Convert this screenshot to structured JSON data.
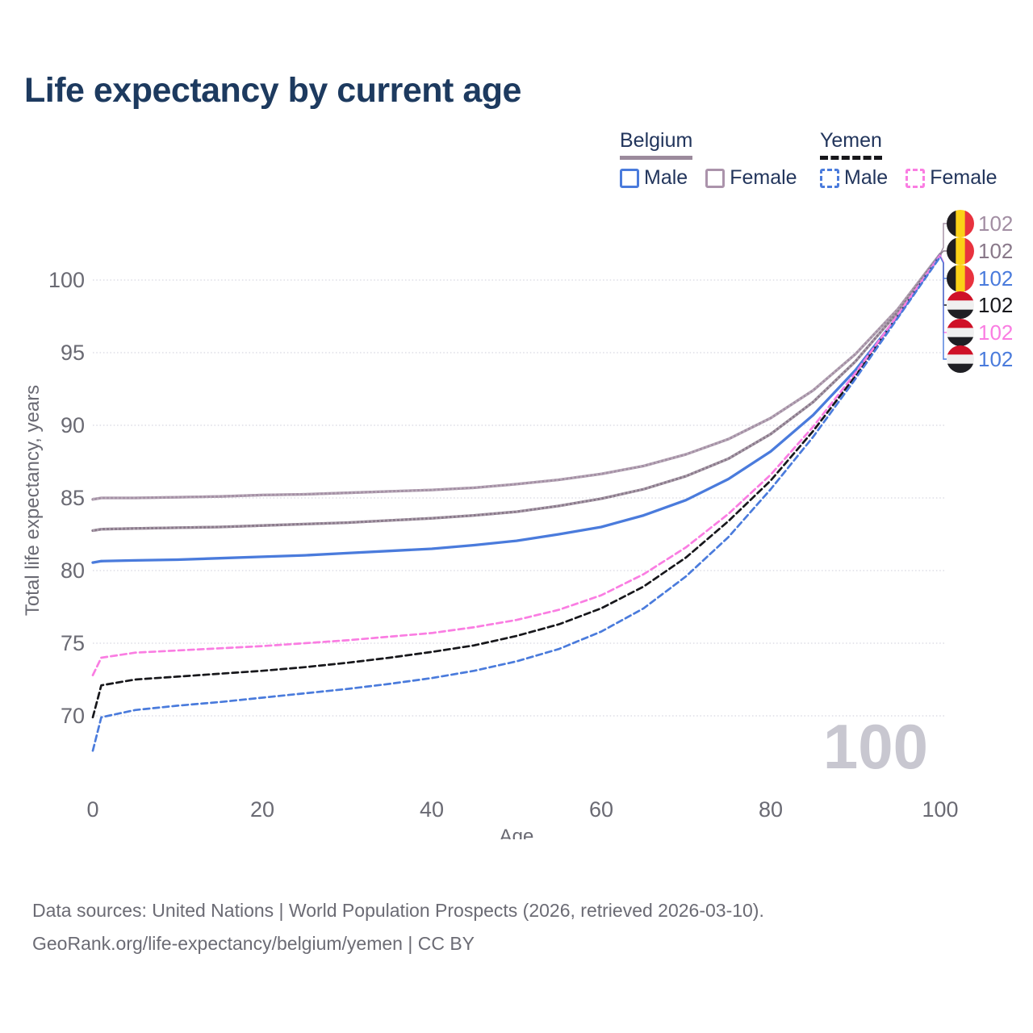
{
  "title": "Life expectancy by current age",
  "legend": {
    "groups": [
      {
        "label": "Belgium",
        "underline_style": "solid",
        "underline_color": "#9b8a9c",
        "items": [
          {
            "label": "Male",
            "color": "#4a7bdc",
            "style": "solid"
          },
          {
            "label": "Female",
            "color": "#ab93ab",
            "style": "solid"
          }
        ]
      },
      {
        "label": "Yemen",
        "underline_style": "dashed",
        "underline_color": "#17171b",
        "items": [
          {
            "label": "Male",
            "color": "#4a7bdc",
            "style": "dashed"
          },
          {
            "label": "Female",
            "color": "#fa7de2",
            "style": "dashed"
          }
        ]
      }
    ]
  },
  "chart_data": {
    "type": "line",
    "title": "Life expectancy by current age",
    "xlabel": "Age",
    "ylabel": "Total life expectancy, years",
    "xlim": [
      0,
      100
    ],
    "ylim": [
      66.5,
      103
    ],
    "xticks": [
      0,
      20,
      40,
      60,
      80,
      100
    ],
    "yticks": [
      70,
      75,
      80,
      85,
      90,
      95,
      100
    ],
    "grid": "horizontal-dotted",
    "legend_position": "top-right",
    "watermark": "100",
    "x": [
      0,
      1,
      5,
      10,
      15,
      20,
      25,
      30,
      35,
      40,
      45,
      50,
      55,
      60,
      65,
      70,
      75,
      80,
      85,
      90,
      95,
      100
    ],
    "series": [
      {
        "name": "Belgium Female",
        "country": "Belgium",
        "sex": "Female",
        "color": "#a28ea3",
        "overlay": "#b7a7b7",
        "dash": "solid",
        "flag": "belgium",
        "end_label": "102",
        "row": 0,
        "values": [
          84.9,
          85.0,
          85.0,
          85.05,
          85.1,
          85.2,
          85.25,
          85.35,
          85.45,
          85.55,
          85.7,
          85.95,
          86.25,
          86.65,
          87.2,
          88.0,
          89.05,
          90.5,
          92.4,
          94.9,
          98.0,
          101.8
        ]
      },
      {
        "name": "Belgium",
        "country": "Belgium",
        "sex": "Both",
        "color": "#887889",
        "overlay": "#aa9caa",
        "dash": "solid",
        "flag": "belgium",
        "end_label": "102",
        "row": 1,
        "values": [
          82.75,
          82.85,
          82.9,
          82.95,
          83.0,
          83.1,
          83.2,
          83.3,
          83.45,
          83.6,
          83.8,
          84.05,
          84.45,
          84.95,
          85.6,
          86.5,
          87.7,
          89.4,
          91.6,
          94.4,
          97.8,
          101.75
        ]
      },
      {
        "name": "Belgium Male",
        "country": "Belgium",
        "sex": "Male",
        "color": "#4a7bdc",
        "overlay": null,
        "dash": "solid",
        "flag": "belgium",
        "end_label": "102",
        "row": 2,
        "values": [
          80.55,
          80.65,
          80.7,
          80.75,
          80.85,
          80.95,
          81.05,
          81.2,
          81.35,
          81.5,
          81.75,
          82.05,
          82.5,
          83.0,
          83.8,
          84.85,
          86.3,
          88.2,
          90.7,
          93.8,
          97.5,
          101.7
        ]
      },
      {
        "name": "Yemen",
        "country": "Yemen",
        "sex": "Both",
        "color": "#17171b",
        "overlay": null,
        "dash": "dashed",
        "flag": "yemen",
        "end_label": "102",
        "row": 3,
        "values": [
          69.9,
          72.1,
          72.5,
          72.7,
          72.9,
          73.1,
          73.35,
          73.65,
          74.0,
          74.4,
          74.85,
          75.5,
          76.3,
          77.4,
          78.9,
          80.9,
          83.4,
          86.2,
          89.6,
          93.4,
          97.5,
          101.65
        ]
      },
      {
        "name": "Yemen Female",
        "country": "Yemen",
        "sex": "Female",
        "color": "#fa7de2",
        "overlay": null,
        "dash": "dashed",
        "flag": "yemen",
        "end_label": "102",
        "row": 4,
        "values": [
          72.8,
          74.0,
          74.35,
          74.5,
          74.65,
          74.8,
          75.0,
          75.2,
          75.45,
          75.7,
          76.1,
          76.6,
          77.3,
          78.3,
          79.75,
          81.6,
          83.9,
          86.6,
          89.9,
          93.6,
          97.6,
          101.7
        ]
      },
      {
        "name": "Yemen Male",
        "country": "Yemen",
        "sex": "Male",
        "color": "#4a7bdc",
        "overlay": null,
        "dash": "dashed",
        "flag": "yemen",
        "end_label": "102",
        "row": 5,
        "values": [
          67.6,
          69.9,
          70.4,
          70.7,
          70.95,
          71.25,
          71.55,
          71.85,
          72.2,
          72.6,
          73.1,
          73.75,
          74.6,
          75.8,
          77.4,
          79.6,
          82.3,
          85.6,
          89.2,
          93.2,
          97.4,
          101.6
        ]
      }
    ],
    "flags": {
      "belgium": {
        "orientation": "vertical",
        "colors": [
          "#1f1d21",
          "#fbd117",
          "#e8323e"
        ]
      },
      "yemen": {
        "orientation": "horizontal",
        "colors": [
          "#cf1127",
          "#f0f0f0",
          "#1f1f24"
        ]
      }
    }
  },
  "colors": {
    "title": "#1d3a5f",
    "axis_text": "#6a6a73",
    "gridline": "#dddde5",
    "watermark": "#c8c7d0",
    "legend_text": "#22355c"
  },
  "footer": {
    "line1": "Data sources: United Nations | World Population Prospects (2026, retrieved 2026-03-10).",
    "line2": "GeoRank.org/life-expectancy/belgium/yemen | CC BY"
  }
}
